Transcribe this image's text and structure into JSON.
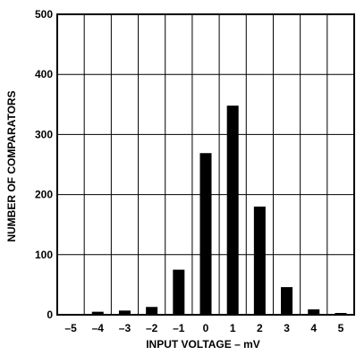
{
  "chart_data": {
    "type": "bar",
    "title": "",
    "xlabel": "INPUT VOLTAGE – mV",
    "ylabel": "NUMBER OF COMPARATORS",
    "categories": [
      -5,
      -4,
      -3,
      -2,
      -1,
      0,
      1,
      2,
      3,
      4,
      5
    ],
    "tick_labels": [
      "–5",
      "–4",
      "–3",
      "–2",
      "–1",
      "0",
      "1",
      "2",
      "3",
      "4",
      "5"
    ],
    "values": [
      0,
      5,
      7,
      13,
      75,
      269,
      348,
      180,
      46,
      9,
      3
    ],
    "y_ticks": [
      0,
      100,
      200,
      300,
      400,
      500
    ],
    "y_tick_labels": [
      "0",
      "100",
      "200",
      "300",
      "400",
      "500"
    ],
    "ylim": [
      0,
      500
    ],
    "grid": true,
    "legend": "none",
    "bar_color": "#000000",
    "grid_color": "#000000"
  }
}
